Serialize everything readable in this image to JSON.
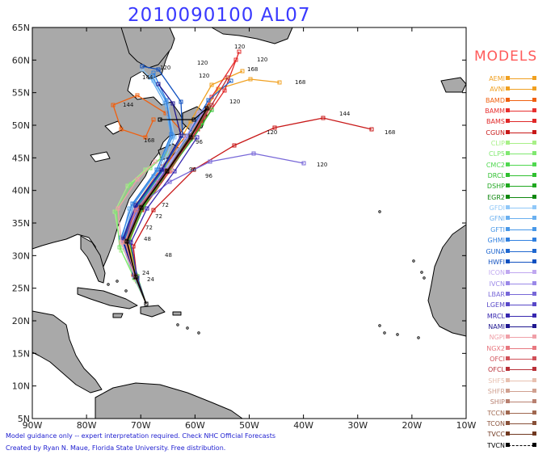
{
  "title": "2010090100 AL07",
  "models_heading": "MODELS",
  "footer": {
    "line1": "Model guidance only -- expert interpretation required.  Check NHC Official Forecasts",
    "line2": "Created by Ryan N. Maue, Florida State University.  Free distribution."
  },
  "axes": {
    "lon_labels": [
      "90W",
      "80W",
      "70W",
      "60W",
      "50W",
      "40W",
      "30W",
      "20W",
      "10W"
    ],
    "lat_labels": [
      "65N",
      "60N",
      "55N",
      "50N",
      "45N",
      "40N",
      "35N",
      "30N",
      "25N",
      "20N",
      "15N",
      "10N",
      "5N"
    ]
  },
  "colors": {
    "land": "#a9a9a9",
    "land_stroke": "#000000",
    "ocean": "#ffffff",
    "title": "#3a3aff",
    "heading": "#ff5a5a"
  },
  "models": [
    {
      "name": "AEMI",
      "color": "#f0a020"
    },
    {
      "name": "AVNI",
      "color": "#f0a020"
    },
    {
      "name": "BAMD",
      "color": "#f06010"
    },
    {
      "name": "BAMM",
      "color": "#e83030"
    },
    {
      "name": "BAMS",
      "color": "#e02828"
    },
    {
      "name": "CGUN",
      "color": "#c81818"
    },
    {
      "name": "CLIP",
      "color": "#a8f088"
    },
    {
      "name": "CLP5",
      "color": "#80e870"
    },
    {
      "name": "CMC2",
      "color": "#50d850"
    },
    {
      "name": "DRCL",
      "color": "#30c030"
    },
    {
      "name": "DSHP",
      "color": "#20a820"
    },
    {
      "name": "EGR2",
      "color": "#108810"
    },
    {
      "name": "GFDI",
      "color": "#90c8f8"
    },
    {
      "name": "GFNI",
      "color": "#6ab0f0"
    },
    {
      "name": "GFTI",
      "color": "#4898e8"
    },
    {
      "name": "GHMI",
      "color": "#3080e0"
    },
    {
      "name": "GUNA",
      "color": "#2068d0"
    },
    {
      "name": "HWFI",
      "color": "#1050c0"
    },
    {
      "name": "ICON",
      "color": "#c0a8f0"
    },
    {
      "name": "IVCN",
      "color": "#9a88e8"
    },
    {
      "name": "LBAR",
      "color": "#7868d8"
    },
    {
      "name": "LGEM",
      "color": "#5848c8"
    },
    {
      "name": "MRCL",
      "color": "#3828b0"
    },
    {
      "name": "NAMI",
      "color": "#201890"
    },
    {
      "name": "NGPI",
      "color": "#f0a0a8"
    },
    {
      "name": "NGX2",
      "color": "#e87880"
    },
    {
      "name": "OFCI",
      "color": "#d05058"
    },
    {
      "name": "OFCL",
      "color": "#b83038"
    },
    {
      "name": "SHF5",
      "color": "#e8c0b0"
    },
    {
      "name": "SHFR",
      "color": "#d0a090"
    },
    {
      "name": "SHIP",
      "color": "#b88070"
    },
    {
      "name": "TCCN",
      "color": "#a06850"
    },
    {
      "name": "TCON",
      "color": "#885038"
    },
    {
      "name": "TVCC",
      "color": "#703820"
    },
    {
      "name": "TVCN",
      "color": "#000000"
    }
  ],
  "forecast_hour_labels": [
    "120",
    "120",
    "168",
    "144",
    "120",
    "168",
    "144",
    "168",
    "120",
    "144",
    "120",
    "168",
    "120",
    "96",
    "96",
    "72",
    "72",
    "72",
    "48",
    "48",
    "24",
    "24",
    "120",
    "120",
    "96"
  ]
}
